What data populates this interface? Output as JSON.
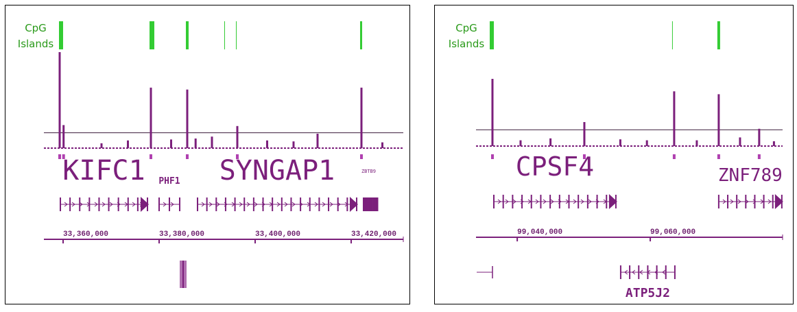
{
  "panels": [
    {
      "track_label": [
        "CpG",
        "Islands"
      ],
      "xlim": [
        33356000,
        33430860
      ],
      "xticks": [
        {
          "value": 33360000,
          "label": "33,360,000"
        },
        {
          "value": 33380000,
          "label": "33,380,000"
        },
        {
          "value": 33400000,
          "label": "33,400,000"
        },
        {
          "value": 33420000,
          "label": "33,420,000"
        }
      ],
      "cpg_islands": [
        [
          33359143,
          33360000
        ],
        [
          33378000,
          33379000
        ],
        [
          33385571,
          33386143
        ],
        [
          33393571,
          33393714
        ],
        [
          33396000,
          33396143
        ],
        [
          33421857,
          33422286
        ]
      ],
      "signal_ylim": [
        0,
        100
      ],
      "threshold": 16,
      "signal_x": [
        33359286,
        33360100,
        33368000,
        33373500,
        33378286,
        33382500,
        33385857,
        33387600,
        33391000,
        33396286,
        33402500,
        33408000,
        33413000,
        33422143,
        33426500
      ],
      "signal": [
        100,
        24,
        5,
        8,
        63,
        9,
        61,
        10,
        12,
        23,
        8,
        7,
        15,
        63,
        6
      ],
      "genes": [
        {
          "name": "KIFC1",
          "start": 33359429,
          "end": 33377571,
          "strand": "+",
          "row": 0
        },
        {
          "name": "PHF1",
          "start": 33380000,
          "end": 33384286,
          "strand": "+",
          "row": 0
        },
        {
          "name": "SYNGAP1",
          "start": 33388000,
          "end": 33421143,
          "strand": "+",
          "row": 0
        },
        {
          "name": "ZBTB9",
          "start": 33422571,
          "end": 33424714,
          "strand": "+",
          "row": 0
        }
      ]
    },
    {
      "track_label": [
        "CpG",
        "Islands"
      ],
      "xlim": [
        99033800,
        99079900
      ],
      "xticks": [
        {
          "value": 99040000,
          "label": "99,040,000"
        },
        {
          "value": 99060000,
          "label": "99,060,000"
        }
      ],
      "cpg_islands": [
        [
          99035862,
          99036480
        ],
        [
          99063287,
          99063390
        ],
        [
          99070090,
          99070504
        ]
      ],
      "signal_ylim": [
        0,
        100
      ],
      "threshold": 17,
      "signal_x": [
        99036274,
        99040500,
        99045000,
        99050090,
        99055500,
        99059500,
        99063596,
        99067000,
        99070297,
        99073500,
        99076380,
        99078600
      ],
      "signal": [
        70,
        6,
        8,
        25,
        7,
        6,
        57,
        6,
        54,
        9,
        18,
        5
      ],
      "genes": [
        {
          "name": "CPSF4",
          "start": 99036481,
          "end": 99054832,
          "strand": "+",
          "row": 0
        },
        {
          "name": "ZNF789",
          "start": 99070297,
          "end": 99079783,
          "strand": "+",
          "row": 0
        },
        {
          "name": "ATP5J2",
          "start": 99055554,
          "end": 99063699,
          "strand": "-",
          "row": 1
        }
      ]
    }
  ]
}
